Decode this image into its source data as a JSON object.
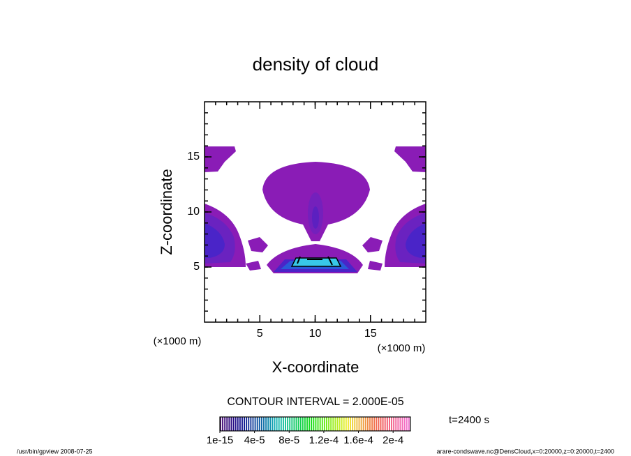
{
  "chart_data": {
    "type": "contour",
    "title": "density of cloud",
    "x_label": "X-coordinate",
    "y_label": "Z-coordinate",
    "x_unit": "(×1000 m)",
    "y_unit": "(×1000 m)",
    "xlim": [
      0,
      20
    ],
    "ylim": [
      0,
      20
    ],
    "xticks": [
      5,
      10,
      15
    ],
    "yticks": [
      5,
      10,
      15
    ],
    "contour_interval": "CONTOUR INTERVAL = 2.000E-05",
    "time": "t=2400 s",
    "colorbar": {
      "lim": [
        0,
        0.00022
      ],
      "ticks": [
        {
          "value": 1e-15,
          "label": "1e-15"
        },
        {
          "value": 4e-05,
          "label": "4e-5"
        },
        {
          "value": 8e-05,
          "label": "8e-5"
        },
        {
          "value": 0.00012,
          "label": "1.2e-4"
        },
        {
          "value": 0.00016,
          "label": "1.6e-4"
        },
        {
          "value": 0.0002,
          "label": "2e-4"
        }
      ]
    }
  },
  "footer": {
    "left": "/usr/bin/gpview  2008-07-25",
    "right": "arare-condswave.nc@DensCloud,x=0:20000,z=0:20000,t=2400"
  }
}
